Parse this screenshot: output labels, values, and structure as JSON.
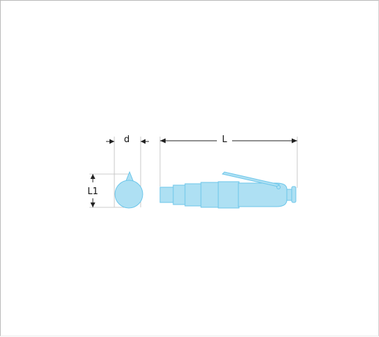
{
  "diagram": {
    "labels": {
      "diameter": "d",
      "length": "L",
      "height": "L1"
    },
    "colors": {
      "fill": "#aee0f3",
      "stroke": "#6cc6ea",
      "dimension": "#222222",
      "extension": "#bdbdbd"
    }
  }
}
